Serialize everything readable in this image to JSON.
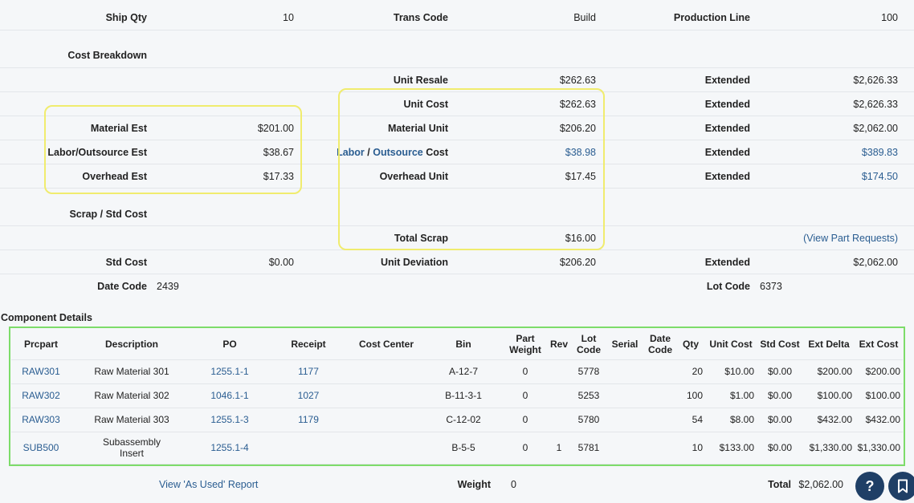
{
  "top": {
    "ship_qty_label": "Ship Qty",
    "ship_qty_value": "10",
    "trans_code_label": "Trans Code",
    "trans_code_value": "Build",
    "production_line_label": "Production Line",
    "production_line_value": "100"
  },
  "cost_breakdown_label": "Cost Breakdown",
  "unit_resale": {
    "label": "Unit Resale",
    "value": "$262.63",
    "ext_label": "Extended",
    "ext_value": "$2,626.33"
  },
  "unit_cost": {
    "label": "Unit Cost",
    "value": "$262.63",
    "ext_label": "Extended",
    "ext_value": "$2,626.33"
  },
  "material": {
    "est_label": "Material Est",
    "est_value": "$201.00",
    "unit_label": "Material Unit",
    "unit_value": "$206.20",
    "ext_label": "Extended",
    "ext_value": "$2,062.00"
  },
  "labor": {
    "est_label": "Labor/Outsource Est",
    "est_value": "$38.67",
    "unit_label_a": "Labor",
    "unit_label_sep": " / ",
    "unit_label_b": "Outsource",
    "unit_label_c": " Cost",
    "unit_value": "$38.98",
    "ext_label": "Extended",
    "ext_value": "$389.83"
  },
  "overhead": {
    "est_label": "Overhead Est",
    "est_value": "$17.33",
    "unit_label": "Overhead Unit",
    "unit_value": "$17.45",
    "ext_label": "Extended",
    "ext_value": "$174.50"
  },
  "scrap_std_label": "Scrap / Std Cost",
  "total_scrap": {
    "label": "Total Scrap",
    "value": "$16.00",
    "view_part_requests": "(View Part Requests)"
  },
  "std_cost": {
    "label": "Std Cost",
    "value": "$0.00",
    "dev_label": "Unit Deviation",
    "dev_value": "$206.20",
    "ext_label": "Extended",
    "ext_value": "$2,062.00"
  },
  "codes": {
    "date_code_label": "Date Code",
    "date_code_value": "2439",
    "lot_code_label": "Lot Code",
    "lot_code_value": "6373"
  },
  "component_details_label": "Component Details",
  "columns": [
    "Prcpart",
    "Description",
    "PO",
    "Receipt",
    "Cost Center",
    "Bin",
    "Part Weight",
    "Rev",
    "Lot Code",
    "Serial",
    "Date Code",
    "Qty",
    "Unit Cost",
    "Std Cost",
    "Ext Delta",
    "Ext Cost"
  ],
  "columns_split": {
    "part_weight_1": "Part",
    "part_weight_2": "Weight",
    "lot_code_1": "Lot",
    "lot_code_2": "Code",
    "date_code_1": "Date",
    "date_code_2": "Code"
  },
  "rows": [
    {
      "prcpart": "RAW301",
      "description": "Raw Material 301",
      "po": "1255.1-1",
      "receipt": "1177",
      "cost_center": "",
      "bin": "A-12-7",
      "part_weight": "0",
      "rev": "",
      "lot_code": "5778",
      "serial": "",
      "date_code": "",
      "qty": "20",
      "unit_cost": "$10.00",
      "std_cost": "$0.00",
      "ext_delta": "$200.00",
      "ext_cost": "$200.00"
    },
    {
      "prcpart": "RAW302",
      "description": "Raw Material 302",
      "po": "1046.1-1",
      "receipt": "1027",
      "cost_center": "",
      "bin": "B-11-3-1",
      "part_weight": "0",
      "rev": "",
      "lot_code": "5253",
      "serial": "",
      "date_code": "",
      "qty": "100",
      "unit_cost": "$1.00",
      "std_cost": "$0.00",
      "ext_delta": "$100.00",
      "ext_cost": "$100.00"
    },
    {
      "prcpart": "RAW303",
      "description": "Raw Material 303",
      "po": "1255.1-3",
      "receipt": "1179",
      "cost_center": "",
      "bin": "C-12-02",
      "part_weight": "0",
      "rev": "",
      "lot_code": "5780",
      "serial": "",
      "date_code": "",
      "qty": "54",
      "unit_cost": "$8.00",
      "std_cost": "$0.00",
      "ext_delta": "$432.00",
      "ext_cost": "$432.00"
    },
    {
      "prcpart": "SUB500",
      "description_1": "Subassembly",
      "description_2": "Insert",
      "po": "1255.1-4",
      "receipt": "",
      "cost_center": "",
      "bin": "B-5-5",
      "part_weight": "0",
      "rev": "1",
      "lot_code": "5781",
      "serial": "",
      "date_code": "",
      "qty": "10",
      "unit_cost": "$133.00",
      "std_cost": "$0.00",
      "ext_delta": "$1,330.00",
      "ext_cost": "$1,330.00"
    }
  ],
  "footer": {
    "view_as_used": "View 'As Used' Report",
    "weight_label": "Weight",
    "weight_value": "0",
    "total_label": "Total",
    "total_value": "$2,062.00"
  },
  "fab": {
    "help_label": "?"
  },
  "colors": {
    "link": "#2a5d91",
    "highlight_yellow": "#f0ec6e",
    "highlight_green": "#7ddc6a",
    "fab": "#1f3f66"
  }
}
